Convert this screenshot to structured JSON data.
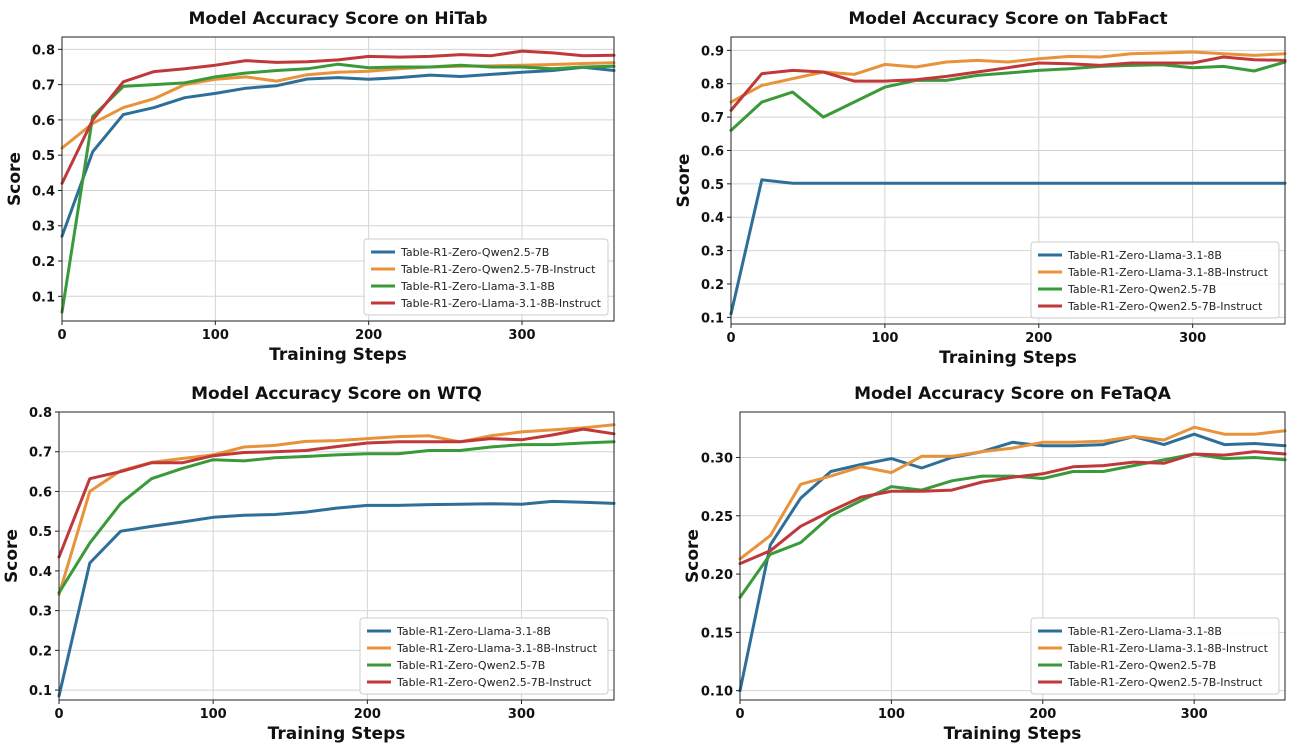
{
  "chart_data": [
    {
      "type": "line",
      "title": "Model Accuracy Score on HiTab",
      "xlabel": "Training Steps",
      "ylabel": "Score",
      "xlim": [
        0,
        360
      ],
      "ylim": [
        0.03,
        0.835
      ],
      "xticks": [
        0,
        100,
        200,
        300
      ],
      "yticks": [
        0.1,
        0.2,
        0.3,
        0.4,
        0.5,
        0.6,
        0.7,
        0.8
      ],
      "ytick_format": 1,
      "grid": true,
      "legend_position": "lower-right",
      "x": [
        0,
        20,
        40,
        60,
        80,
        100,
        120,
        140,
        160,
        180,
        200,
        220,
        240,
        260,
        280,
        300,
        320,
        340,
        360
      ],
      "series": [
        {
          "name": "Table-R1-Zero-Qwen2.5-7B",
          "color": "#2e6f9a",
          "values": [
            0.27,
            0.51,
            0.615,
            0.635,
            0.663,
            0.675,
            0.69,
            0.697,
            0.716,
            0.72,
            0.715,
            0.72,
            0.727,
            0.723,
            0.729,
            0.735,
            0.74,
            0.749,
            0.74
          ]
        },
        {
          "name": "Table-R1-Zero-Qwen2.5-7B-Instruct",
          "color": "#e8923a",
          "values": [
            0.52,
            0.59,
            0.635,
            0.66,
            0.7,
            0.715,
            0.722,
            0.71,
            0.728,
            0.735,
            0.738,
            0.745,
            0.75,
            0.752,
            0.753,
            0.755,
            0.757,
            0.76,
            0.762
          ]
        },
        {
          "name": "Table-R1-Zero-Llama-3.1-8B",
          "color": "#3a9a3a",
          "values": [
            0.055,
            0.61,
            0.695,
            0.7,
            0.705,
            0.722,
            0.733,
            0.74,
            0.745,
            0.758,
            0.748,
            0.75,
            0.75,
            0.755,
            0.75,
            0.75,
            0.745,
            0.75,
            0.752
          ]
        },
        {
          "name": "Table-R1-Zero-Llama-3.1-8B-Instruct",
          "color": "#c0383a",
          "values": [
            0.42,
            0.6,
            0.708,
            0.737,
            0.745,
            0.755,
            0.768,
            0.763,
            0.765,
            0.77,
            0.78,
            0.778,
            0.78,
            0.785,
            0.782,
            0.795,
            0.79,
            0.782,
            0.783
          ]
        }
      ]
    },
    {
      "type": "line",
      "title": "Model Accuracy Score on TabFact",
      "xlabel": "Training Steps",
      "ylabel": "Score",
      "xlim": [
        0,
        360
      ],
      "ylim": [
        0.08,
        0.94
      ],
      "xticks": [
        0,
        100,
        200,
        300
      ],
      "yticks": [
        0.1,
        0.2,
        0.3,
        0.4,
        0.5,
        0.6,
        0.7,
        0.8,
        0.9
      ],
      "ytick_format": 1,
      "grid": true,
      "legend_position": "lower-right",
      "x": [
        0,
        20,
        40,
        60,
        80,
        100,
        120,
        140,
        160,
        180,
        200,
        220,
        240,
        260,
        280,
        300,
        320,
        340,
        360
      ],
      "series": [
        {
          "name": "Table-R1-Zero-Llama-3.1-8B",
          "color": "#2e6f9a",
          "values": [
            0.11,
            0.512,
            0.502,
            0.502,
            0.502,
            0.502,
            0.502,
            0.502,
            0.502,
            0.502,
            0.502,
            0.502,
            0.502,
            0.502,
            0.502,
            0.502,
            0.502,
            0.502,
            0.502
          ]
        },
        {
          "name": "Table-R1-Zero-Llama-3.1-8B-Instruct",
          "color": "#e8923a",
          "values": [
            0.745,
            0.795,
            0.815,
            0.835,
            0.828,
            0.858,
            0.85,
            0.865,
            0.87,
            0.865,
            0.875,
            0.882,
            0.88,
            0.89,
            0.892,
            0.895,
            0.89,
            0.885,
            0.89
          ]
        },
        {
          "name": "Table-R1-Zero-Qwen2.5-7B",
          "color": "#3a9a3a",
          "values": [
            0.66,
            0.745,
            0.775,
            0.7,
            0.745,
            0.79,
            0.81,
            0.81,
            0.825,
            0.832,
            0.84,
            0.845,
            0.852,
            0.855,
            0.857,
            0.848,
            0.852,
            0.838,
            0.865
          ]
        },
        {
          "name": "Table-R1-Zero-Qwen2.5-7B-Instruct",
          "color": "#c0383a",
          "values": [
            0.72,
            0.83,
            0.84,
            0.835,
            0.808,
            0.808,
            0.812,
            0.822,
            0.835,
            0.848,
            0.862,
            0.86,
            0.855,
            0.862,
            0.862,
            0.862,
            0.88,
            0.872,
            0.87
          ]
        }
      ]
    },
    {
      "type": "line",
      "title": "Model Accuracy Score on WTQ",
      "xlabel": "Training Steps",
      "ylabel": "Score",
      "xlim": [
        0,
        360
      ],
      "ylim": [
        0.075,
        0.8
      ],
      "xticks": [
        0,
        100,
        200,
        300
      ],
      "yticks": [
        0.1,
        0.2,
        0.3,
        0.4,
        0.5,
        0.6,
        0.7,
        0.8
      ],
      "ytick_format": 1,
      "grid": true,
      "legend_position": "lower-right",
      "x": [
        0,
        20,
        40,
        60,
        80,
        100,
        120,
        140,
        160,
        180,
        200,
        220,
        240,
        260,
        280,
        300,
        320,
        340,
        360
      ],
      "series": [
        {
          "name": "Table-R1-Zero-Llama-3.1-8B",
          "color": "#2e6f9a",
          "values": [
            0.085,
            0.42,
            0.5,
            0.512,
            0.523,
            0.535,
            0.54,
            0.542,
            0.548,
            0.558,
            0.565,
            0.565,
            0.567,
            0.568,
            0.569,
            0.568,
            0.575,
            0.573,
            0.57
          ]
        },
        {
          "name": "Table-R1-Zero-Llama-3.1-8B-Instruct",
          "color": "#e8923a",
          "values": [
            0.34,
            0.6,
            0.652,
            0.673,
            0.683,
            0.692,
            0.712,
            0.716,
            0.726,
            0.728,
            0.733,
            0.738,
            0.74,
            0.725,
            0.74,
            0.75,
            0.755,
            0.76,
            0.768
          ]
        },
        {
          "name": "Table-R1-Zero-Qwen2.5-7B",
          "color": "#3a9a3a",
          "values": [
            0.345,
            0.47,
            0.57,
            0.632,
            0.658,
            0.68,
            0.677,
            0.685,
            0.688,
            0.692,
            0.695,
            0.695,
            0.703,
            0.703,
            0.712,
            0.718,
            0.718,
            0.722,
            0.725
          ]
        },
        {
          "name": "Table-R1-Zero-Qwen2.5-7B-Instruct",
          "color": "#c0383a",
          "values": [
            0.435,
            0.632,
            0.65,
            0.672,
            0.672,
            0.69,
            0.698,
            0.7,
            0.703,
            0.713,
            0.722,
            0.725,
            0.725,
            0.725,
            0.733,
            0.73,
            0.742,
            0.757,
            0.745
          ]
        }
      ]
    },
    {
      "type": "line",
      "title": "Model Accuracy Score on FeTaQA",
      "xlabel": "Training Steps",
      "ylabel": "Score",
      "xlim": [
        0,
        360
      ],
      "ylim": [
        0.092,
        0.339
      ],
      "xticks": [
        0,
        100,
        200,
        300
      ],
      "yticks": [
        0.1,
        0.15,
        0.2,
        0.25,
        0.3
      ],
      "ytick_format": 2,
      "grid": true,
      "legend_position": "lower-right",
      "x": [
        0,
        20,
        40,
        60,
        80,
        100,
        120,
        140,
        160,
        180,
        200,
        220,
        240,
        260,
        280,
        300,
        320,
        340,
        360
      ],
      "series": [
        {
          "name": "Table-R1-Zero-Llama-3.1-8B",
          "color": "#2e6f9a",
          "values": [
            0.1,
            0.225,
            0.265,
            0.288,
            0.294,
            0.299,
            0.291,
            0.3,
            0.305,
            0.313,
            0.31,
            0.31,
            0.311,
            0.318,
            0.311,
            0.32,
            0.311,
            0.312,
            0.31
          ]
        },
        {
          "name": "Table-R1-Zero-Llama-3.1-8B-Instruct",
          "color": "#e8923a",
          "values": [
            0.213,
            0.233,
            0.277,
            0.284,
            0.292,
            0.287,
            0.301,
            0.301,
            0.305,
            0.308,
            0.313,
            0.313,
            0.314,
            0.318,
            0.315,
            0.326,
            0.32,
            0.32,
            0.323
          ]
        },
        {
          "name": "Table-R1-Zero-Qwen2.5-7B",
          "color": "#3a9a3a",
          "values": [
            0.18,
            0.217,
            0.227,
            0.25,
            0.263,
            0.275,
            0.272,
            0.28,
            0.284,
            0.284,
            0.282,
            0.288,
            0.288,
            0.293,
            0.298,
            0.303,
            0.299,
            0.3,
            0.298
          ]
        },
        {
          "name": "Table-R1-Zero-Qwen2.5-7B-Instruct",
          "color": "#c0383a",
          "values": [
            0.209,
            0.22,
            0.241,
            0.254,
            0.266,
            0.271,
            0.271,
            0.272,
            0.279,
            0.283,
            0.286,
            0.292,
            0.293,
            0.296,
            0.295,
            0.303,
            0.302,
            0.305,
            0.303
          ]
        }
      ]
    }
  ]
}
